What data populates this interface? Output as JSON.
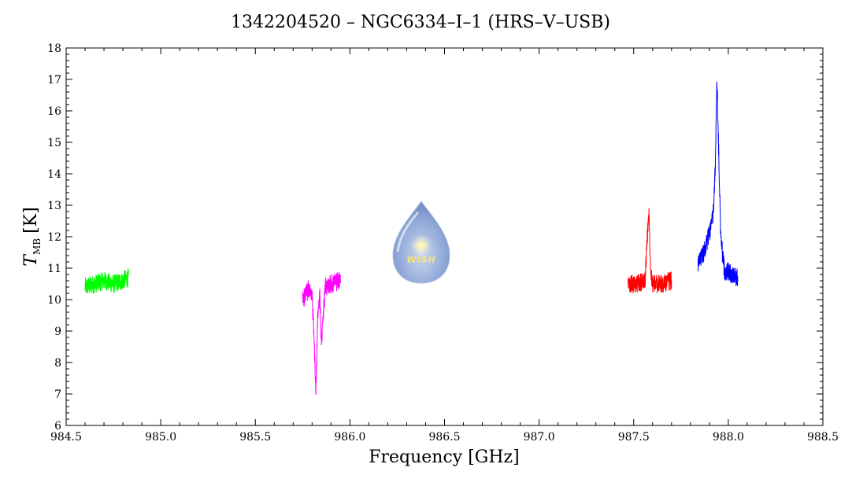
{
  "chart_data": {
    "type": "line",
    "title": "1342204520 – NGC6334–I–1 (HRS–V–USB)",
    "xlabel": "Frequency [GHz]",
    "ylabel": {
      "symbol": "T",
      "subscript": "MB",
      "unit": "[K]"
    },
    "xlim": [
      984.5,
      988.5
    ],
    "ylim": [
      6,
      18
    ],
    "xticks": [
      984.5,
      985.0,
      985.5,
      986.0,
      986.5,
      987.0,
      987.5,
      988.0,
      988.5
    ],
    "xtick_labels": [
      "984.5",
      "985.0",
      "985.5",
      "986.0",
      "986.5",
      "987.0",
      "987.5",
      "988.0",
      "988.5"
    ],
    "yticks": [
      6,
      7,
      8,
      9,
      10,
      11,
      12,
      13,
      14,
      15,
      16,
      17,
      18
    ],
    "ytick_labels": [
      "6",
      "7",
      "8",
      "9",
      "10",
      "11",
      "12",
      "13",
      "14",
      "15",
      "16",
      "17",
      "18"
    ],
    "grid": false,
    "series": [
      {
        "color": "#00ff00",
        "x": [
          984.6,
          984.65,
          984.7,
          984.75,
          984.8,
          984.83
        ],
        "y": [
          10.4,
          10.5,
          10.6,
          10.5,
          10.6,
          10.7
        ]
      },
      {
        "color": "#ff00ff",
        "x": [
          985.75,
          985.78,
          985.8,
          985.81,
          985.82,
          985.83,
          985.84,
          985.85,
          985.86,
          985.87,
          985.9,
          985.95
        ],
        "y": [
          10.0,
          10.3,
          10.1,
          8.8,
          7.0,
          9.5,
          10.2,
          8.6,
          9.6,
          10.4,
          10.5,
          10.6
        ]
      },
      {
        "color": "#ff0000",
        "x": [
          987.47,
          987.52,
          987.56,
          987.57,
          987.58,
          987.59,
          987.6,
          987.65,
          987.7
        ],
        "y": [
          10.5,
          10.5,
          10.6,
          11.8,
          12.8,
          11.0,
          10.5,
          10.5,
          10.6
        ]
      },
      {
        "color": "#0000ff",
        "x": [
          987.84,
          987.87,
          987.9,
          987.92,
          987.93,
          987.94,
          987.95,
          987.96,
          987.98,
          988.0,
          988.02,
          988.05
        ],
        "y": [
          11.1,
          11.5,
          12.1,
          12.7,
          14.0,
          17.0,
          14.5,
          12.0,
          10.9,
          10.9,
          10.8,
          10.7
        ]
      }
    ]
  },
  "logo": {
    "text": "WISH"
  }
}
